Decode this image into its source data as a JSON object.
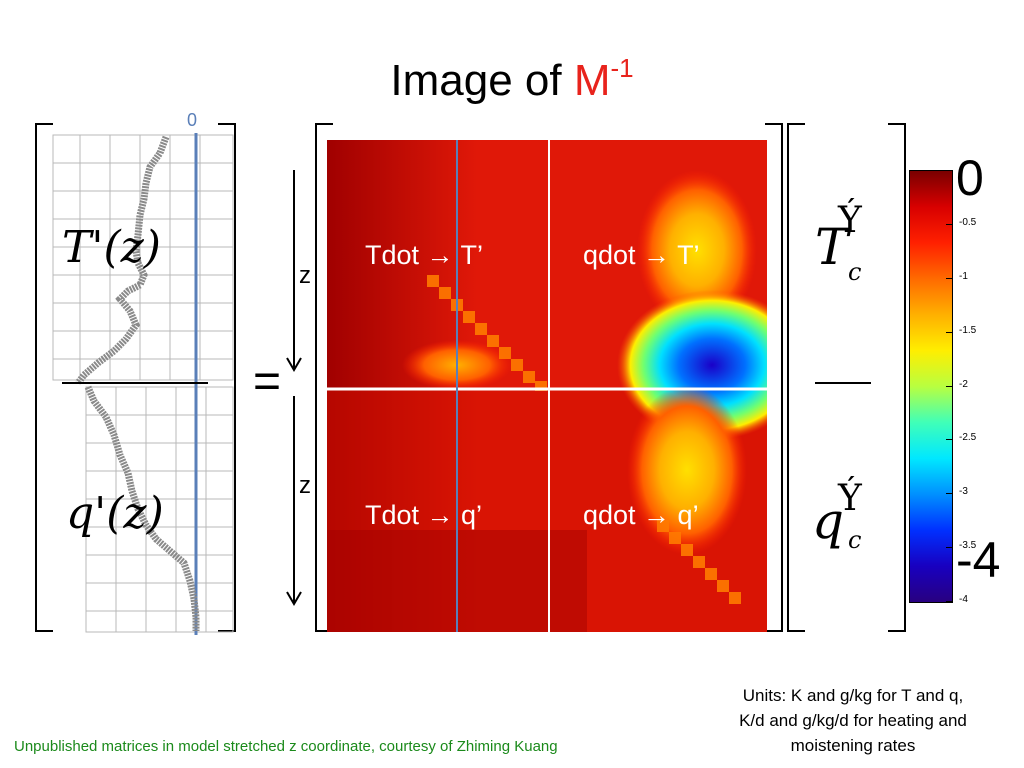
{
  "slide": {
    "title_text": "Image of",
    "title_symbol": "M",
    "title_exponent": "-1"
  },
  "left_panels": {
    "top_label": "T'(z)",
    "bottom_label": "q'(z)",
    "zero_tick": "0"
  },
  "equals_sign": "=",
  "axis_labels": {
    "upper": "z",
    "lower": "z"
  },
  "quadrants": {
    "top_left": "Tdot → T’",
    "top_right": "qdot → T’",
    "bottom_left": "Tdot → q’",
    "bottom_right": "qdot → q’"
  },
  "right_vector": {
    "top_main": "T",
    "top_sub": "c",
    "top_over": "Ý",
    "bottom_main": "q",
    "bottom_sub": "c",
    "bottom_over": "Ý"
  },
  "colorbar": {
    "top_label": "0",
    "bottom_label": "-4",
    "ticks": [
      "-0.5",
      "-1",
      "-1.5",
      "-2",
      "-2.5",
      "-3",
      "-3.5",
      "-4"
    ],
    "min": -4,
    "max": 0,
    "colors": [
      "#7a0000",
      "#d80000",
      "#ff2000",
      "#ff6a00",
      "#ffb000",
      "#ffee00",
      "#b8ff40",
      "#40ffb8",
      "#00e8ff",
      "#0090ff",
      "#0030ff",
      "#1800c0",
      "#280080"
    ]
  },
  "units_note": {
    "line1": "Units: K and g/kg for T and q,",
    "line2": "K/d and g/kg/d for heating and",
    "line3": "moistening rates"
  },
  "footnote": "Unpublished matrices in model stretched z coordinate, courtesy of Zhiming Kuang"
}
